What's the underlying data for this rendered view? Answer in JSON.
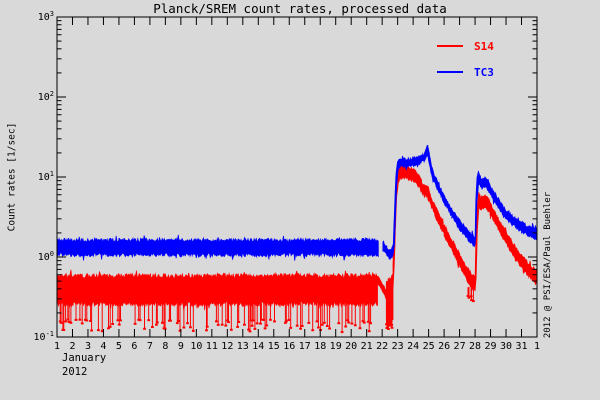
{
  "credit": "2012 @ PSI/ESA/Paul Buehler",
  "chart_data": {
    "type": "line",
    "title": "Planck/SREM count rates, processed data",
    "xlabel": "January 2012",
    "ylabel": "Count rates [1/sec]",
    "y_axis": {
      "label": "Count rates [1/sec]",
      "scale": "log",
      "ylim": [
        0.1,
        1000
      ],
      "tick_exponents": [
        -1,
        0,
        1,
        2,
        3
      ]
    },
    "x_axis": {
      "month": "January",
      "year": "2012",
      "xlim_days": [
        1,
        32
      ],
      "tick_labels": [
        "1",
        "2",
        "3",
        "4",
        "5",
        "6",
        "7",
        "8",
        "9",
        "10",
        "11",
        "12",
        "13",
        "14",
        "15",
        "16",
        "17",
        "18",
        "19",
        "20",
        "21",
        "22",
        "23",
        "24",
        "25",
        "26",
        "27",
        "28",
        "29",
        "30",
        "31",
        "1"
      ]
    },
    "legend": {
      "position": "upper-right-inside",
      "entries": [
        {
          "label": "S14",
          "color": "#ff0000"
        },
        {
          "label": "TC3",
          "color": "#0000ff"
        }
      ]
    },
    "grid": false,
    "annotations": {
      "quiet_period": "days 1-21.7: S14 ~0.26-0.58 c/s with dropouts to ~0.12; TC3 ~1.05-1.65 c/s",
      "event1": "SEP event onset ~Jan 22.8: TC3 plateau 14-19 c/s, spike to ~25 on Jan 25, decay to ~1.5 by Jan 28",
      "event2": "SEP event ~Jan 28: TC3 peak ~11 c/s, S14 peak ~6 c/s, decay through Feb 1"
    },
    "series": [
      {
        "name": "S14",
        "color": "#ff0000",
        "segments": [
          {
            "points": [
              [
                1.0,
                0.26,
                0.58
              ],
              [
                21.7,
                0.26,
                0.58
              ]
            ],
            "jitter": 0.03
          },
          {
            "points": [
              [
                21.7,
                0.48,
                0.58
              ],
              [
                21.9,
                0.42,
                0.5
              ],
              [
                22.1,
                0.35,
                0.43
              ],
              [
                22.27,
                0.3,
                0.38
              ]
            ],
            "jitter": 0.012
          },
          {
            "points": [
              [
                22.27,
                0.15,
                0.48
              ],
              [
                22.7,
                0.16,
                0.55
              ]
            ],
            "jitter": 0.05
          },
          {
            "points": [
              [
                22.7,
                0.4,
                0.8
              ],
              [
                22.78,
                0.8,
                2.5
              ],
              [
                22.86,
                2.5,
                6.0
              ],
              [
                22.94,
                5.5,
                9.5
              ],
              [
                23.05,
                9.0,
                12.5
              ],
              [
                23.3,
                10.0,
                13.8
              ],
              [
                23.6,
                9.5,
                13.2
              ],
              [
                23.9,
                9.2,
                12.8
              ],
              [
                24.15,
                8.8,
                12.2
              ],
              [
                24.35,
                7.8,
                10.5
              ],
              [
                24.55,
                6.6,
                8.8
              ],
              [
                24.75,
                5.8,
                7.6
              ],
              [
                24.95,
                5.6,
                7.6
              ],
              [
                25.1,
                4.6,
                6.0
              ],
              [
                25.4,
                3.4,
                4.4
              ],
              [
                25.7,
                2.5,
                3.3
              ],
              [
                26.0,
                1.9,
                2.5
              ],
              [
                26.3,
                1.45,
                1.95
              ],
              [
                26.7,
                1.02,
                1.4
              ],
              [
                27.0,
                0.78,
                1.08
              ],
              [
                27.3,
                0.6,
                0.85
              ],
              [
                27.6,
                0.47,
                0.68
              ],
              [
                27.85,
                0.4,
                0.58
              ],
              [
                28.0,
                0.38,
                0.55
              ],
              [
                28.07,
                0.55,
                2.2
              ],
              [
                28.15,
                2.2,
                4.6
              ],
              [
                28.25,
                4.3,
                6.0
              ],
              [
                28.4,
                4.0,
                5.5
              ],
              [
                28.55,
                4.1,
                5.7
              ],
              [
                28.7,
                4.2,
                5.8
              ],
              [
                28.85,
                3.9,
                5.3
              ],
              [
                29.0,
                3.4,
                4.6
              ],
              [
                29.2,
                2.9,
                3.9
              ],
              [
                29.5,
                2.25,
                3.0
              ],
              [
                29.8,
                1.75,
                2.35
              ],
              [
                30.1,
                1.38,
                1.85
              ],
              [
                30.4,
                1.1,
                1.5
              ],
              [
                30.7,
                0.9,
                1.25
              ],
              [
                31.0,
                0.75,
                1.05
              ],
              [
                31.3,
                0.63,
                0.88
              ],
              [
                31.6,
                0.55,
                0.77
              ],
              [
                31.85,
                0.49,
                0.7
              ],
              [
                32.0,
                0.46,
                0.66
              ]
            ],
            "jitter": 0.022
          }
        ],
        "pickets": [
          {
            "from": 1.03,
            "to": 21.65,
            "step": 0.085,
            "prob": 0.42,
            "top": 0.27,
            "depth_min": 0.115,
            "depth_max": 0.165
          },
          {
            "from": 22.28,
            "to": 22.68,
            "step": 0.03,
            "prob": 0.85,
            "top": 0.5,
            "depth_min": 0.125,
            "depth_max": 0.16
          },
          {
            "from": 27.55,
            "to": 27.98,
            "step": 0.06,
            "prob": 0.5,
            "top": 0.42,
            "depth_min": 0.28,
            "depth_max": 0.34
          }
        ]
      },
      {
        "name": "TC3",
        "color": "#0000ff",
        "segments": [
          {
            "points": [
              [
                1.0,
                1.07,
                1.62
              ],
              [
                21.75,
                1.07,
                1.62
              ]
            ],
            "jitter": 0.025
          },
          {
            "points": [
              [
                22.05,
                1.28,
                1.58
              ],
              [
                22.3,
                1.05,
                1.32
              ],
              [
                22.5,
                0.95,
                1.18
              ],
              [
                22.65,
                1.0,
                1.3
              ],
              [
                22.72,
                1.1,
                1.4
              ]
            ],
            "jitter": 0.015
          },
          {
            "points": [
              [
                22.72,
                1.1,
                1.4
              ],
              [
                22.8,
                1.5,
                4.0
              ],
              [
                22.88,
                4.0,
                10.0
              ],
              [
                22.95,
                9.0,
                14.0
              ],
              [
                23.05,
                13.0,
                16.0
              ],
              [
                23.3,
                14.0,
                17.0
              ],
              [
                23.6,
                13.5,
                16.5
              ],
              [
                23.9,
                14.0,
                17.0
              ],
              [
                24.2,
                14.5,
                17.5
              ],
              [
                24.5,
                15.0,
                18.5
              ],
              [
                24.75,
                16.0,
                19.5
              ],
              [
                24.85,
                18.0,
                23.0
              ],
              [
                24.95,
                19.0,
                25.0
              ],
              [
                25.05,
                14.0,
                19.0
              ],
              [
                25.2,
                10.5,
                13.0
              ],
              [
                25.5,
                7.5,
                9.2
              ],
              [
                25.8,
                5.8,
                7.0
              ],
              [
                26.1,
                4.4,
                5.4
              ],
              [
                26.5,
                3.2,
                4.0
              ],
              [
                26.9,
                2.4,
                3.0
              ],
              [
                27.3,
                1.9,
                2.4
              ],
              [
                27.6,
                1.6,
                2.05
              ],
              [
                27.9,
                1.42,
                1.85
              ],
              [
                28.0,
                1.4,
                1.8
              ],
              [
                28.05,
                1.8,
                5.0
              ],
              [
                28.12,
                5.0,
                9.5
              ],
              [
                28.22,
                8.5,
                11.5
              ],
              [
                28.35,
                7.8,
                10.0
              ],
              [
                28.5,
                7.2,
                9.2
              ],
              [
                28.65,
                7.5,
                9.6
              ],
              [
                28.8,
                7.0,
                9.0
              ],
              [
                29.0,
                6.0,
                7.6
              ],
              [
                29.2,
                5.2,
                6.6
              ],
              [
                29.5,
                4.2,
                5.3
              ],
              [
                29.8,
                3.4,
                4.3
              ],
              [
                30.1,
                2.9,
                3.7
              ],
              [
                30.4,
                2.55,
                3.25
              ],
              [
                30.7,
                2.3,
                2.95
              ],
              [
                31.0,
                2.1,
                2.7
              ],
              [
                31.4,
                1.9,
                2.45
              ],
              [
                31.8,
                1.75,
                2.3
              ],
              [
                32.0,
                1.7,
                2.25
              ]
            ],
            "jitter": 0.022
          }
        ],
        "pickets": []
      }
    ]
  }
}
